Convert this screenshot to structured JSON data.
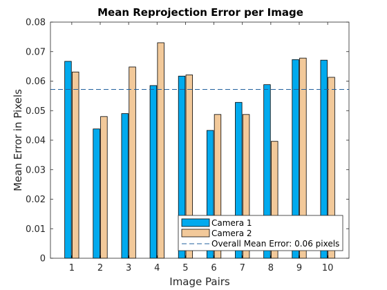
{
  "chart_data": {
    "type": "bar",
    "title": "Mean Reprojection Error per Image",
    "xlabel": "Image Pairs",
    "ylabel": "Mean Error in Pixels",
    "categories": [
      "1",
      "2",
      "3",
      "4",
      "5",
      "6",
      "7",
      "8",
      "9",
      "10"
    ],
    "series": [
      {
        "name": "Camera 1",
        "color": "#00aaee",
        "values": [
          0.0667,
          0.0438,
          0.049,
          0.0585,
          0.0617,
          0.0433,
          0.0528,
          0.0588,
          0.0673,
          0.0671
        ]
      },
      {
        "name": "Camera 2",
        "color": "#f2c99a",
        "values": [
          0.0631,
          0.048,
          0.0648,
          0.073,
          0.0621,
          0.0487,
          0.0487,
          0.0396,
          0.0678,
          0.0613
        ]
      }
    ],
    "reference_line": {
      "label": "Overall Mean Error: 0.06 pixels",
      "value": 0.0572,
      "color": "#1f5f9e",
      "style": "dashed"
    },
    "ylim": [
      0,
      0.08
    ],
    "yticks": [
      "0",
      "0.01",
      "0.02",
      "0.03",
      "0.04",
      "0.05",
      "0.06",
      "0.07",
      "0.08"
    ],
    "grid": false,
    "legend_position": "bottom-right"
  }
}
